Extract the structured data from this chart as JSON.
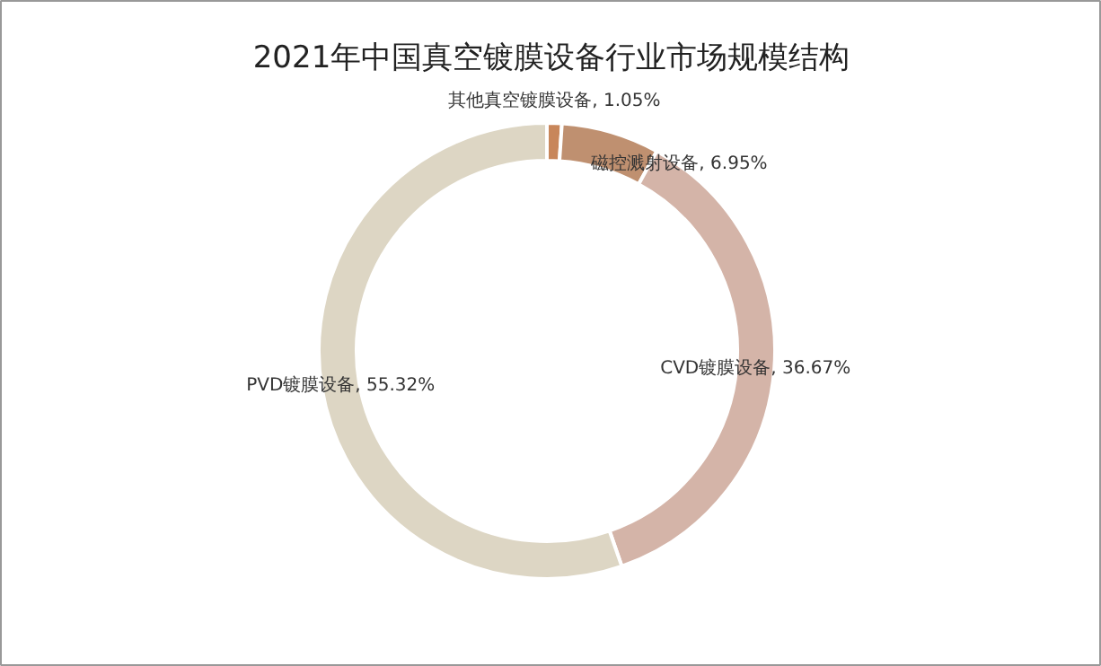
{
  "chart_data": {
    "type": "donut",
    "title": "2021年中国真空镀膜设备行业市场规模结构",
    "categories": [
      "其他真空镀膜设备",
      "磁控溅射设备",
      "CVD镀膜设备",
      "PVD镀膜设备"
    ],
    "values": [
      1.05,
      6.95,
      36.67,
      55.32
    ],
    "value_labels": [
      "1.05%",
      "6.95%",
      "36.67%",
      "55.32%"
    ],
    "colors": [
      "#c8865a",
      "#bf9070",
      "#d4b4a8",
      "#ddd6c4"
    ]
  }
}
